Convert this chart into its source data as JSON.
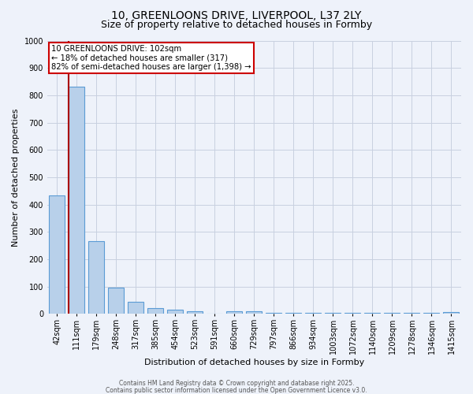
{
  "title1": "10, GREENLOONS DRIVE, LIVERPOOL, L37 2LY",
  "title2": "Size of property relative to detached houses in Formby",
  "xlabel": "Distribution of detached houses by size in Formby",
  "ylabel": "Number of detached properties",
  "categories": [
    "42sqm",
    "111sqm",
    "179sqm",
    "248sqm",
    "317sqm",
    "385sqm",
    "454sqm",
    "523sqm",
    "591sqm",
    "660sqm",
    "729sqm",
    "797sqm",
    "866sqm",
    "934sqm",
    "1003sqm",
    "1072sqm",
    "1140sqm",
    "1209sqm",
    "1278sqm",
    "1346sqm",
    "1415sqm"
  ],
  "values": [
    434,
    830,
    265,
    95,
    45,
    20,
    15,
    10,
    0,
    10,
    10,
    5,
    5,
    5,
    5,
    5,
    5,
    5,
    5,
    5,
    8
  ],
  "bar_color": "#b8d0ea",
  "bar_edge_color": "#5b9bd5",
  "ylim": [
    0,
    1000
  ],
  "yticks": [
    0,
    100,
    200,
    300,
    400,
    500,
    600,
    700,
    800,
    900,
    1000
  ],
  "annotation_text": "10 GREENLOONS DRIVE: 102sqm\n← 18% of detached houses are smaller (317)\n82% of semi-detached houses are larger (1,398) →",
  "annotation_box_color": "#ffffff",
  "annotation_box_edge_color": "#cc0000",
  "background_color": "#eef2fa",
  "grid_color": "#c8d0e0",
  "title_fontsize": 10,
  "subtitle_fontsize": 9,
  "axis_label_fontsize": 8,
  "tick_fontsize": 7,
  "footer_text1": "Contains HM Land Registry data © Crown copyright and database right 2025.",
  "footer_text2": "Contains public sector information licensed under the Open Government Licence v3.0.",
  "red_line_color": "#aa0000",
  "redline_bar_index": 1
}
